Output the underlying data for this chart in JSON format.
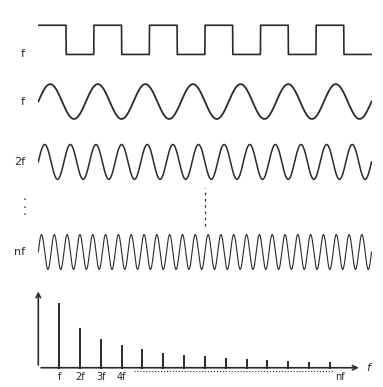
{
  "background_color": "#ffffff",
  "line_color": "#2a2a2a",
  "label_fontsize": 8,
  "tick_fontsize": 7,
  "square_wave_cycles": 6,
  "sine1_cycles": 7,
  "sine2_cycles": 13,
  "sinen_cycles": 26,
  "spectrum_freqs": [
    1,
    2,
    3,
    4,
    5,
    6,
    7,
    8,
    9,
    10,
    11,
    12,
    13,
    14
  ],
  "spectrum_amplitudes": [
    1.0,
    0.6,
    0.44,
    0.34,
    0.27,
    0.22,
    0.19,
    0.16,
    0.14,
    0.12,
    0.1,
    0.09,
    0.08,
    0.07
  ],
  "x_tick_labels": [
    "f",
    "2f",
    "3f",
    "4f"
  ],
  "x_end_label": "nf",
  "x_axis_label": "f",
  "figure_width": 3.83,
  "figure_height": 3.87,
  "dpi": 100
}
